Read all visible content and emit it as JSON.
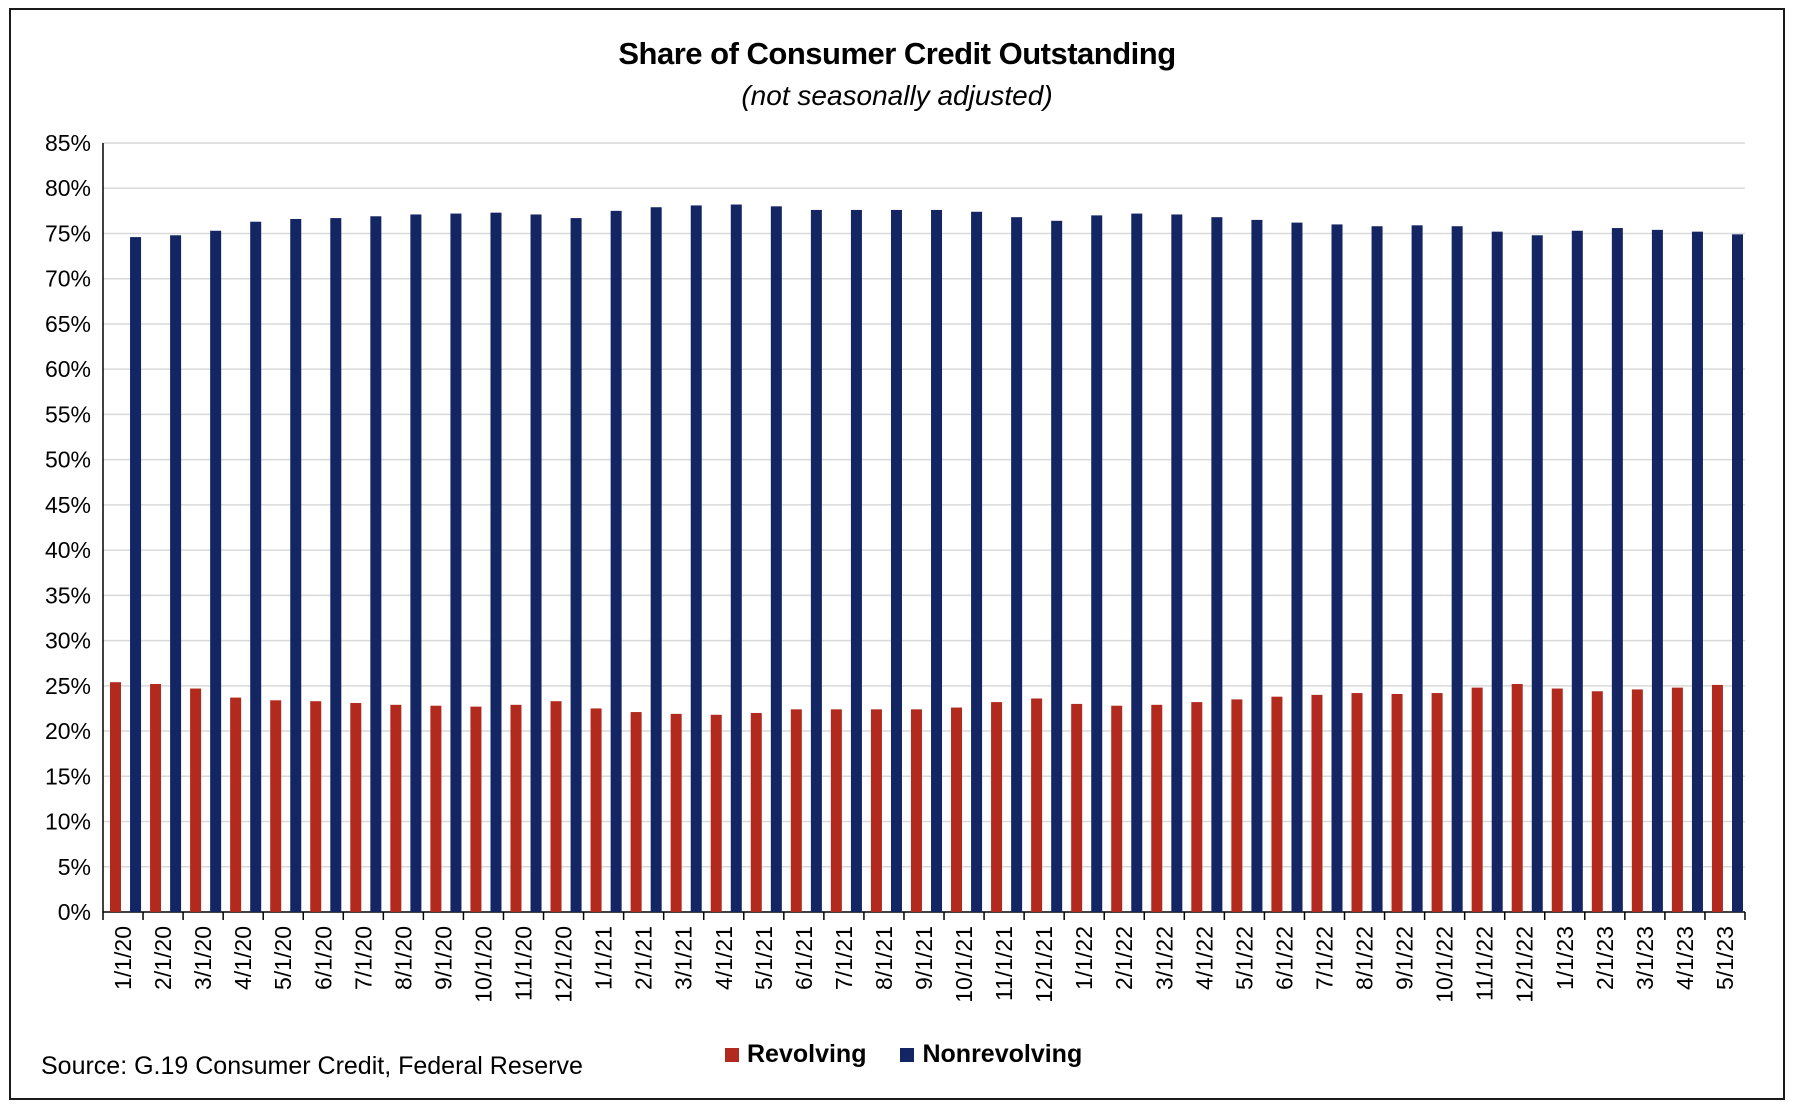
{
  "chart_data": {
    "type": "bar",
    "title": "Share of Consumer Credit Outstanding",
    "subtitle": "(not seasonally adjusted)",
    "source": "Source: G.19 Consumer Credit, Federal Reserve",
    "xlabel": "",
    "ylabel": "",
    "ylim": [
      0,
      85
    ],
    "ytick_step": 5,
    "ytick_labels": [
      "0%",
      "5%",
      "10%",
      "15%",
      "20%",
      "25%",
      "30%",
      "35%",
      "40%",
      "45%",
      "50%",
      "55%",
      "60%",
      "65%",
      "70%",
      "75%",
      "80%",
      "85%"
    ],
    "grid": true,
    "legend_position": "bottom",
    "categories": [
      "1/1/20",
      "2/1/20",
      "3/1/20",
      "4/1/20",
      "5/1/20",
      "6/1/20",
      "7/1/20",
      "8/1/20",
      "9/1/20",
      "10/1/20",
      "11/1/20",
      "12/1/20",
      "1/1/21",
      "2/1/21",
      "3/1/21",
      "4/1/21",
      "5/1/21",
      "6/1/21",
      "7/1/21",
      "8/1/21",
      "9/1/21",
      "10/1/21",
      "11/1/21",
      "12/1/21",
      "1/1/22",
      "2/1/22",
      "3/1/22",
      "4/1/22",
      "5/1/22",
      "6/1/22",
      "7/1/22",
      "8/1/22",
      "9/1/22",
      "10/1/22",
      "11/1/22",
      "12/1/22",
      "1/1/23",
      "2/1/23",
      "3/1/23",
      "4/1/23",
      "5/1/23"
    ],
    "series": [
      {
        "name": "Revolving",
        "color": "#B22A1E",
        "values": [
          25.4,
          25.2,
          24.7,
          23.7,
          23.4,
          23.3,
          23.1,
          22.9,
          22.8,
          22.7,
          22.9,
          23.3,
          22.5,
          22.1,
          21.9,
          21.8,
          22.0,
          22.4,
          22.4,
          22.4,
          22.4,
          22.6,
          23.2,
          23.6,
          23.0,
          22.8,
          22.9,
          23.2,
          23.5,
          23.8,
          24.0,
          24.2,
          24.1,
          24.2,
          24.8,
          25.2,
          24.7,
          24.4,
          24.6,
          24.8,
          25.1
        ]
      },
      {
        "name": "Nonrevolving",
        "color": "#142564",
        "values": [
          74.6,
          74.8,
          75.3,
          76.3,
          76.6,
          76.7,
          76.9,
          77.1,
          77.2,
          77.3,
          77.1,
          76.7,
          77.5,
          77.9,
          78.1,
          78.2,
          78.0,
          77.6,
          77.6,
          77.6,
          77.6,
          77.4,
          76.8,
          76.4,
          77.0,
          77.2,
          77.1,
          76.8,
          76.5,
          76.2,
          76.0,
          75.8,
          75.9,
          75.8,
          75.2,
          74.8,
          75.3,
          75.6,
          75.4,
          75.2,
          74.9
        ]
      }
    ]
  },
  "colors": {
    "grid": "#d9d9d9",
    "axis": "#000000",
    "frame": "#1a1a1a"
  }
}
